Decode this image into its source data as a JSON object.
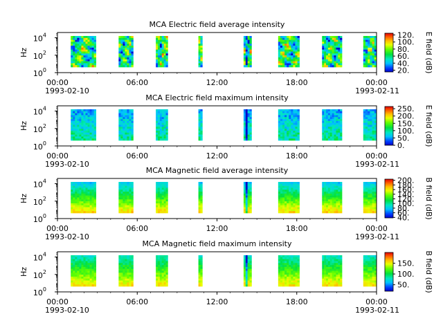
{
  "chart_data": [
    {
      "type": "heatmap",
      "title": "MCA  Electric field average intensity",
      "ylabel": "Hz",
      "ylim_log10": [
        0,
        4.6
      ],
      "y_ticks": [
        {
          "base": "10",
          "exp": "0",
          "value": 1
        },
        {
          "base": "10",
          "exp": "2",
          "value": 100
        },
        {
          "base": "10",
          "exp": "4",
          "value": 10000
        }
      ],
      "x_ticks": [
        "00:00",
        "06:00",
        "12:00",
        "18:00",
        "00:00"
      ],
      "x_tick_hours": [
        0,
        6,
        12,
        18,
        24
      ],
      "date_start": "1993-02-10",
      "date_end": "1993-02-11",
      "colorbar": {
        "label": "E field (dB)",
        "range": [
          15,
          125
        ],
        "ticks": [
          "20.",
          "40.",
          "60.",
          "80.",
          "100.",
          "120."
        ],
        "tick_values": [
          20,
          40,
          60,
          80,
          100,
          120
        ]
      },
      "data_intervals_hours": [
        [
          1.0,
          2.9
        ],
        [
          4.6,
          5.7
        ],
        [
          7.4,
          8.3
        ],
        [
          10.6,
          10.9
        ],
        [
          14.0,
          14.6
        ],
        [
          16.6,
          18.2
        ],
        [
          19.9,
          21.4
        ],
        [
          23.0,
          24.1
        ]
      ],
      "spectral_style": "avg_e"
    },
    {
      "type": "heatmap",
      "title": "MCA  Electric field maximum intensity",
      "ylabel": "Hz",
      "ylim_log10": [
        0,
        4.6
      ],
      "y_ticks": [
        {
          "base": "10",
          "exp": "0",
          "value": 1
        },
        {
          "base": "10",
          "exp": "2",
          "value": 100
        },
        {
          "base": "10",
          "exp": "4",
          "value": 10000
        }
      ],
      "x_ticks": [
        "00:00",
        "06:00",
        "12:00",
        "18:00",
        "00:00"
      ],
      "x_tick_hours": [
        0,
        6,
        12,
        18,
        24
      ],
      "date_start": "1993-02-10",
      "date_end": "1993-02-11",
      "colorbar": {
        "label": "E field (dB)",
        "range": [
          0,
          265
        ],
        "ticks": [
          "0.",
          "50.",
          "100.",
          "150.",
          "200.",
          "250."
        ],
        "tick_values": [
          0,
          50,
          100,
          150,
          200,
          250
        ]
      },
      "data_intervals_hours": [
        [
          1.0,
          2.9
        ],
        [
          4.6,
          5.7
        ],
        [
          7.4,
          8.3
        ],
        [
          10.6,
          10.9
        ],
        [
          14.0,
          14.6
        ],
        [
          16.6,
          18.2
        ],
        [
          19.9,
          21.4
        ],
        [
          23.0,
          24.1
        ]
      ],
      "spectral_style": "max_e"
    },
    {
      "type": "heatmap",
      "title": "MCA  Magnetic field average intensity",
      "ylabel": "Hz",
      "ylim_log10": [
        0,
        4.6
      ],
      "y_ticks": [
        {
          "base": "10",
          "exp": "0",
          "value": 1
        },
        {
          "base": "10",
          "exp": "2",
          "value": 100
        },
        {
          "base": "10",
          "exp": "4",
          "value": 10000
        }
      ],
      "x_ticks": [
        "00:00",
        "06:00",
        "12:00",
        "18:00",
        "00:00"
      ],
      "x_tick_hours": [
        0,
        6,
        12,
        18,
        24
      ],
      "date_start": "1993-02-10",
      "date_end": "1993-02-11",
      "colorbar": {
        "label": "B field (dB)",
        "range": [
          38,
          205
        ],
        "ticks": [
          "40.",
          "60.",
          "80.",
          "100.",
          "120.",
          "140.",
          "160.",
          "180.",
          "200."
        ],
        "tick_values": [
          40,
          60,
          80,
          100,
          120,
          140,
          160,
          180,
          200
        ]
      },
      "data_intervals_hours": [
        [
          1.0,
          2.9
        ],
        [
          4.6,
          5.7
        ],
        [
          7.4,
          8.3
        ],
        [
          10.6,
          10.9
        ],
        [
          14.0,
          14.6
        ],
        [
          16.6,
          18.2
        ],
        [
          19.9,
          21.4
        ],
        [
          23.0,
          24.1
        ]
      ],
      "spectral_style": "avg_b"
    },
    {
      "type": "heatmap",
      "title": "MCA  Magnetic field maximum intensity",
      "ylabel": "Hz",
      "ylim_log10": [
        0,
        4.6
      ],
      "y_ticks": [
        {
          "base": "10",
          "exp": "0",
          "value": 1
        },
        {
          "base": "10",
          "exp": "2",
          "value": 100
        },
        {
          "base": "10",
          "exp": "4",
          "value": 10000
        }
      ],
      "x_ticks": [
        "00:00",
        "06:00",
        "12:00",
        "18:00",
        "00:00"
      ],
      "x_tick_hours": [
        0,
        6,
        12,
        18,
        24
      ],
      "date_start": "1993-02-10",
      "date_end": "1993-02-11",
      "colorbar": {
        "label": "B field (dB)",
        "range": [
          20,
          200
        ],
        "ticks": [
          "50.",
          "100.",
          "150."
        ],
        "tick_values": [
          50,
          100,
          150
        ]
      },
      "data_intervals_hours": [
        [
          1.0,
          2.9
        ],
        [
          4.6,
          5.7
        ],
        [
          7.4,
          8.3
        ],
        [
          10.6,
          10.9
        ],
        [
          14.0,
          14.6
        ],
        [
          16.6,
          18.2
        ],
        [
          19.9,
          21.4
        ],
        [
          23.0,
          24.1
        ]
      ],
      "spectral_style": "max_b"
    }
  ]
}
